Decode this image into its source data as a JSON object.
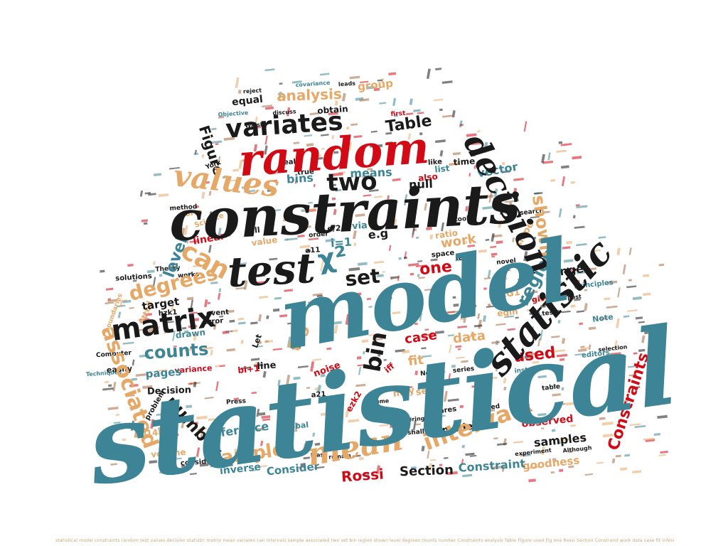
{
  "colors": {
    "teal": "#3d8596",
    "black": "#1a1a1a",
    "red": "#d10a16",
    "tan": "#e6a866",
    "brown": "#a66a42"
  },
  "words": [
    {
      "text": "statistical",
      "color": "teal"
    },
    {
      "text": "model",
      "color": "teal"
    },
    {
      "text": "constraints",
      "color": "black"
    },
    {
      "text": "random",
      "color": "red"
    },
    {
      "text": "test",
      "color": "black"
    },
    {
      "text": "values",
      "color": "tan"
    },
    {
      "text": "decision",
      "color": "black"
    },
    {
      "text": "statistic",
      "color": "black"
    },
    {
      "text": "matrix",
      "color": "black"
    },
    {
      "text": "mean",
      "color": "tan"
    },
    {
      "text": "variates",
      "color": "black"
    },
    {
      "text": "can",
      "color": "tan"
    },
    {
      "text": "intervals",
      "color": "tan"
    },
    {
      "text": "sample",
      "color": "tan"
    },
    {
      "text": "associated",
      "color": "tan"
    },
    {
      "text": "χ²",
      "color": "teal"
    },
    {
      "text": "two",
      "color": "black"
    },
    {
      "text": "set",
      "color": "black"
    },
    {
      "text": "bin",
      "color": "black"
    },
    {
      "text": "region",
      "color": "teal"
    },
    {
      "text": "shown",
      "color": "tan"
    },
    {
      "text": "level",
      "color": "teal"
    },
    {
      "text": "degrees",
      "color": "tan"
    },
    {
      "text": "counts",
      "color": "teal"
    },
    {
      "text": "number",
      "color": "black"
    },
    {
      "text": "Constraints",
      "color": "red"
    },
    {
      "text": "analysis",
      "color": "tan"
    },
    {
      "text": "Table",
      "color": "black"
    },
    {
      "text": "Figure",
      "color": "black"
    },
    {
      "text": "used",
      "color": "red"
    },
    {
      "text": "Fig",
      "color": "tan"
    },
    {
      "text": "one",
      "color": "red"
    },
    {
      "text": "Rossi",
      "color": "red"
    },
    {
      "text": "Section",
      "color": "black"
    },
    {
      "text": "Constraint",
      "color": "teal"
    },
    {
      "text": "work",
      "color": "tan"
    },
    {
      "text": "data",
      "color": "tan"
    },
    {
      "text": "case",
      "color": "red"
    },
    {
      "text": "fit",
      "color": "tan"
    },
    {
      "text": "inference",
      "color": "teal"
    },
    {
      "text": "samples",
      "color": "black"
    },
    {
      "text": "range",
      "color": "black"
    },
    {
      "text": "vector",
      "color": "teal"
    },
    {
      "text": "means",
      "color": "teal"
    },
    {
      "text": "null",
      "color": "black"
    },
    {
      "text": "bins",
      "color": "teal"
    },
    {
      "text": "e.g",
      "color": "black"
    },
    {
      "text": "linear",
      "color": "red"
    },
    {
      "text": "pages",
      "color": "teal"
    },
    {
      "text": "target",
      "color": "black"
    },
    {
      "text": "models",
      "color": "black"
    },
    {
      "text": "observed",
      "color": "red"
    },
    {
      "text": "Consider",
      "color": "teal"
    },
    {
      "text": "goodness",
      "color": "tan"
    },
    {
      "text": "inverse",
      "color": "teal"
    },
    {
      "text": "Decision",
      "color": "black"
    },
    {
      "text": "group",
      "color": "tan"
    },
    {
      "text": "equal",
      "color": "black"
    },
    {
      "text": "slope",
      "color": "tan"
    },
    {
      "text": "via",
      "color": "teal"
    },
    {
      "text": "line",
      "color": "black"
    },
    {
      "text": "sets",
      "color": "tan"
    },
    {
      "text": "noise",
      "color": "red"
    },
    {
      "text": "may",
      "color": "tan"
    },
    {
      "text": "drawn",
      "color": "teal"
    },
    {
      "text": "variance",
      "color": "red"
    },
    {
      "text": "global",
      "color": "teal"
    },
    {
      "text": "2014b",
      "color": "tan"
    },
    {
      "text": "volume",
      "color": "tan"
    },
    {
      "text": "also",
      "color": "red"
    },
    {
      "text": "list",
      "color": "teal"
    },
    {
      "text": "time",
      "color": "black"
    },
    {
      "text": "obtain",
      "color": "black"
    },
    {
      "text": "fitted",
      "color": "tan"
    },
    {
      "text": "easily",
      "color": "black"
    },
    {
      "text": "error",
      "color": "black"
    },
    {
      "text": "event",
      "color": "black"
    },
    {
      "text": "Let",
      "color": "black"
    },
    {
      "text": "iff",
      "color": "red"
    },
    {
      "text": "value",
      "color": "tan"
    },
    {
      "text": "will",
      "color": "black"
    },
    {
      "text": "Science",
      "color": "tan"
    },
    {
      "text": "form",
      "color": "tan"
    },
    {
      "text": "true",
      "color": "black"
    },
    {
      "text": "real",
      "color": "black"
    },
    {
      "text": "like",
      "color": "black"
    },
    {
      "text": "space",
      "color": "black"
    },
    {
      "text": "less",
      "color": "black"
    },
    {
      "text": "ratio",
      "color": "tan"
    },
    {
      "text": "given",
      "color": "red"
    },
    {
      "text": "tests",
      "color": "black"
    },
    {
      "text": "Note",
      "color": "teal"
    },
    {
      "text": "editors",
      "color": "teal"
    },
    {
      "text": "table",
      "color": "black"
    },
    {
      "text": "instance",
      "color": "teal"
    },
    {
      "text": "series",
      "color": "black"
    },
    {
      "text": "solutions",
      "color": "black"
    },
    {
      "text": "problem",
      "color": "black"
    },
    {
      "text": "squares",
      "color": "black"
    },
    {
      "text": "based",
      "color": "black"
    },
    {
      "text": "consider",
      "color": "black"
    },
    {
      "text": "shall",
      "color": "black"
    },
    {
      "text": "covering",
      "color": "black"
    },
    {
      "text": "Press",
      "color": "black"
    },
    {
      "text": "assume",
      "color": "black"
    },
    {
      "text": "New",
      "color": "black"
    },
    {
      "text": "Computer",
      "color": "black"
    },
    {
      "text": "boundaries",
      "color": "tan"
    },
    {
      "text": "works",
      "color": "black"
    },
    {
      "text": "method",
      "color": "black"
    },
    {
      "text": "Theory",
      "color": "black"
    },
    {
      "text": "tools",
      "color": "black"
    },
    {
      "text": "Principles",
      "color": "teal"
    },
    {
      "text": "novel",
      "color": "black"
    },
    {
      "text": "search",
      "color": "black"
    },
    {
      "text": "covariance",
      "color": "teal"
    },
    {
      "text": "leads",
      "color": "black"
    },
    {
      "text": "reject",
      "color": "black"
    },
    {
      "text": "discuss",
      "color": "black"
    },
    {
      "text": "Objective",
      "color": "teal"
    },
    {
      "text": "York",
      "color": "black"
    },
    {
      "text": "Walsh",
      "color": "black"
    },
    {
      "text": "experiment",
      "color": "black"
    },
    {
      "text": "Although",
      "color": "black"
    },
    {
      "text": "remain",
      "color": "black"
    },
    {
      "text": "least",
      "color": "black"
    },
    {
      "text": "selection",
      "color": "black"
    },
    {
      "text": "post",
      "color": "black"
    },
    {
      "text": "Techniques",
      "color": "teal"
    },
    {
      "text": "bi+1",
      "color": "red"
    },
    {
      "text": "hzk1",
      "color": "black"
    },
    {
      "text": "a21",
      "color": "black"
    },
    {
      "text": "a11",
      "color": "black"
    },
    {
      "text": "i=1",
      "color": "teal"
    },
    {
      "text": "α/2",
      "color": "black"
    },
    {
      "text": "ARG1",
      "color": "tan"
    },
    {
      "text": "egin",
      "color": "tan"
    },
    {
      "text": "ezk2",
      "color": "red"
    },
    {
      "text": "first",
      "color": "red"
    },
    {
      "text": "order",
      "color": "black"
    }
  ],
  "footer_text": "statistical model constraints random test values decision statistic matrix mean variates can intervals sample associated two set bin region shown level degrees counts number Constraints analysis Table Figure used Fig one Rossi Section Constraint work data case fit inference samples range vector means null bins e.g linear pages target models observed Consider goodness inverse Decision group equal slope via line sets noise may drawn variance global volume also list time obtain fitted easily error event Let iff value will Science form true real like space less ratio given tests Note editors table instance series solutions problem squares based consider shall covering Press assume New Computer boundaries works method Theory tools Principles novel search covariance"
}
